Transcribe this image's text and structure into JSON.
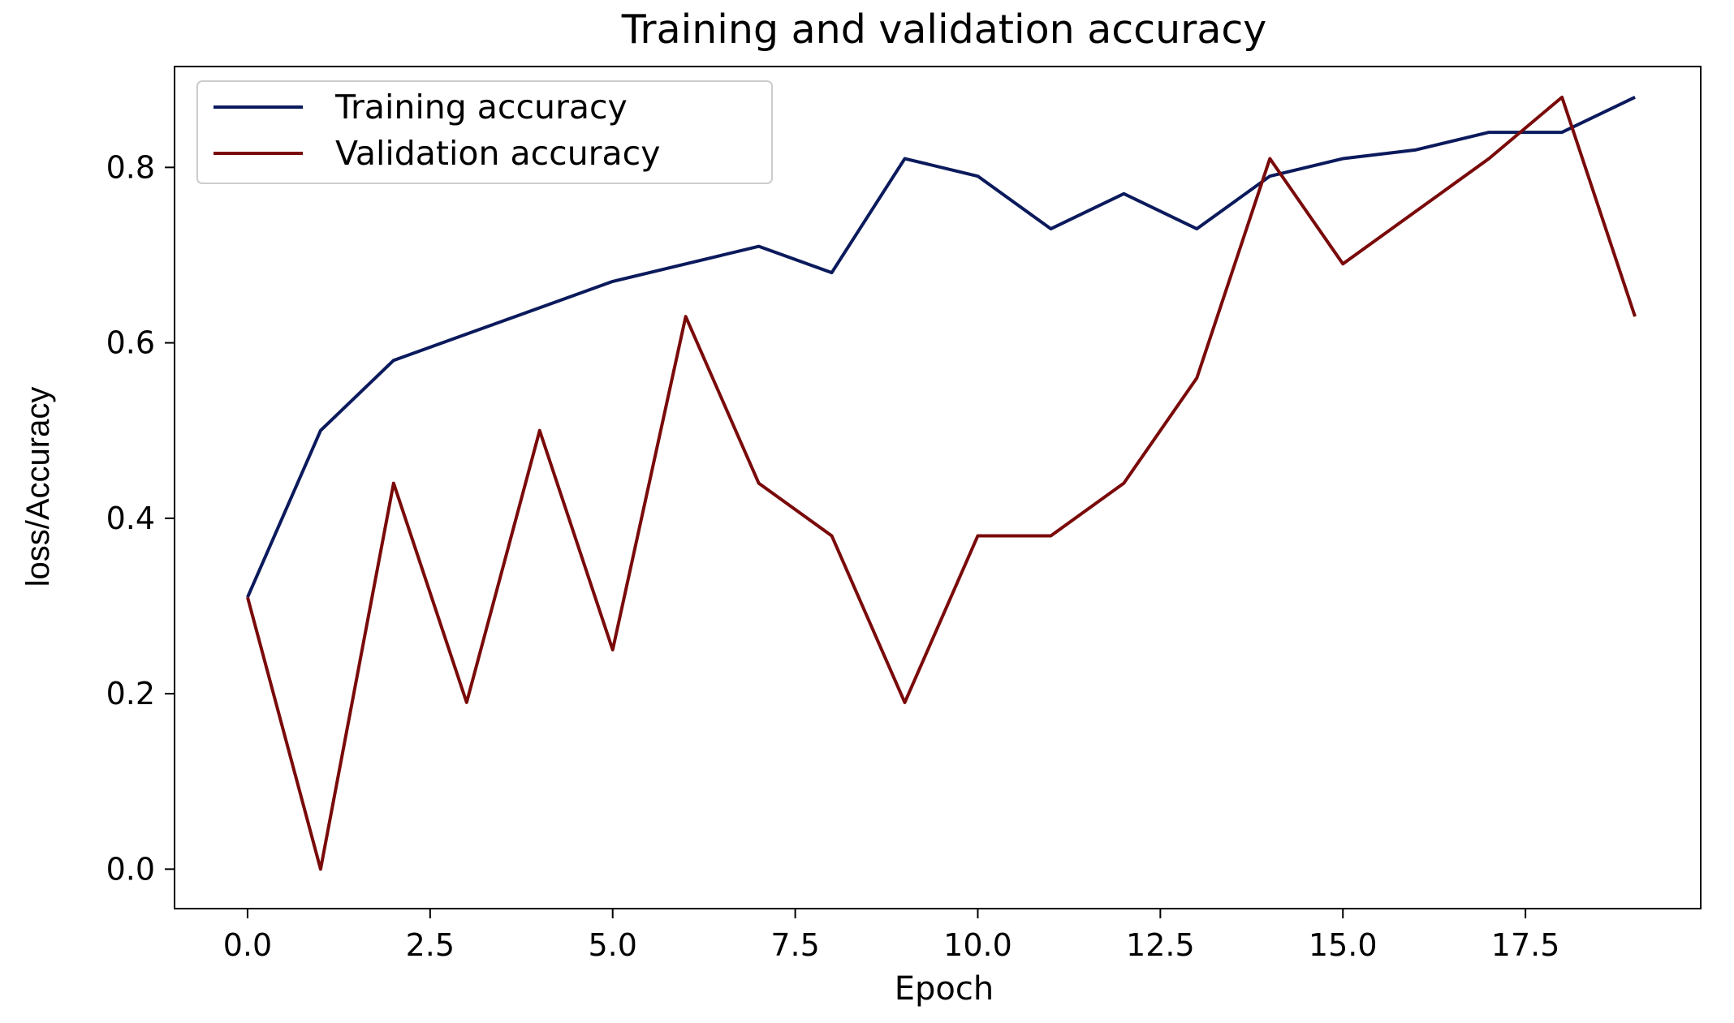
{
  "chart_data": {
    "type": "line",
    "title": "Training and validation accuracy",
    "xlabel": "Epoch",
    "ylabel": "loss/Accuracy",
    "xlim": [
      -1,
      19.9
    ],
    "ylim": [
      -0.045,
      0.915
    ],
    "xticks": [
      0,
      2.5,
      5,
      7.5,
      10,
      12.5,
      15,
      17.5
    ],
    "xtick_labels": [
      "0.0",
      "2.5",
      "5.0",
      "7.5",
      "10.0",
      "12.5",
      "15.0",
      "17.5"
    ],
    "yticks": [
      0,
      0.2,
      0.4,
      0.6,
      0.8
    ],
    "ytick_labels": [
      "0.0",
      "0.2",
      "0.4",
      "0.6",
      "0.8"
    ],
    "grid": false,
    "legend_position": "top-left",
    "x": [
      0,
      1,
      2,
      3,
      4,
      5,
      6,
      7,
      8,
      9,
      10,
      11,
      12,
      13,
      14,
      15,
      16,
      17,
      18,
      19
    ],
    "series": [
      {
        "name": "Training accuracy",
        "color": "#0b1a5c",
        "values": [
          0.31,
          0.5,
          0.58,
          0.61,
          0.64,
          0.67,
          0.69,
          0.71,
          0.68,
          0.81,
          0.79,
          0.73,
          0.77,
          0.73,
          0.79,
          0.81,
          0.82,
          0.84,
          0.84,
          0.88
        ]
      },
      {
        "name": "Validation accuracy",
        "color": "#7a0a0a",
        "values": [
          0.31,
          0.0,
          0.44,
          0.19,
          0.5,
          0.25,
          0.63,
          0.44,
          0.38,
          0.19,
          0.38,
          0.38,
          0.44,
          0.56,
          0.81,
          0.69,
          0.75,
          0.81,
          0.88,
          0.63
        ]
      }
    ]
  }
}
